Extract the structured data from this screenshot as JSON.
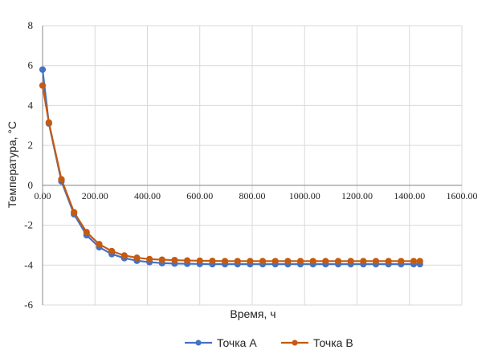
{
  "chart_data": {
    "type": "line",
    "xlabel": "Время, ч",
    "ylabel": "Температура, °C",
    "xlim": [
      0,
      1600
    ],
    "ylim": [
      -6,
      8
    ],
    "x_ticks": [
      0,
      200,
      400,
      600,
      800,
      1000,
      1200,
      1400,
      1600
    ],
    "x_tick_labels": [
      "0.00",
      "200.00",
      "400.00",
      "600.00",
      "800.00",
      "1000.00",
      "1200.00",
      "1400.00",
      "1600.00"
    ],
    "y_ticks": [
      -6,
      -4,
      -2,
      0,
      2,
      4,
      6,
      8
    ],
    "y_tick_labels": [
      "-6",
      "-4",
      "-2",
      "0",
      "2",
      "4",
      "6",
      "8"
    ],
    "grid": true,
    "legend_position": "bottom",
    "x": [
      0,
      24,
      72,
      120,
      168,
      216,
      264,
      312,
      360,
      408,
      456,
      504,
      552,
      600,
      648,
      696,
      744,
      792,
      840,
      888,
      936,
      984,
      1032,
      1080,
      1128,
      1176,
      1224,
      1272,
      1320,
      1368,
      1416,
      1440
    ],
    "series": [
      {
        "name": "Точка А",
        "color": "#4472C4",
        "values": [
          5.8,
          3.1,
          0.2,
          -1.45,
          -2.5,
          -3.1,
          -3.45,
          -3.65,
          -3.78,
          -3.85,
          -3.9,
          -3.92,
          -3.93,
          -3.94,
          -3.95,
          -3.95,
          -3.95,
          -3.95,
          -3.95,
          -3.95,
          -3.95,
          -3.95,
          -3.95,
          -3.95,
          -3.95,
          -3.95,
          -3.95,
          -3.95,
          -3.95,
          -3.95,
          -3.95,
          -3.95
        ]
      },
      {
        "name": "Точка В",
        "color": "#C55A11",
        "values": [
          5.0,
          3.15,
          0.3,
          -1.35,
          -2.35,
          -2.95,
          -3.3,
          -3.52,
          -3.63,
          -3.7,
          -3.73,
          -3.75,
          -3.77,
          -3.78,
          -3.79,
          -3.8,
          -3.8,
          -3.8,
          -3.8,
          -3.8,
          -3.8,
          -3.8,
          -3.8,
          -3.8,
          -3.8,
          -3.8,
          -3.8,
          -3.8,
          -3.8,
          -3.8,
          -3.8,
          -3.8
        ]
      }
    ]
  }
}
